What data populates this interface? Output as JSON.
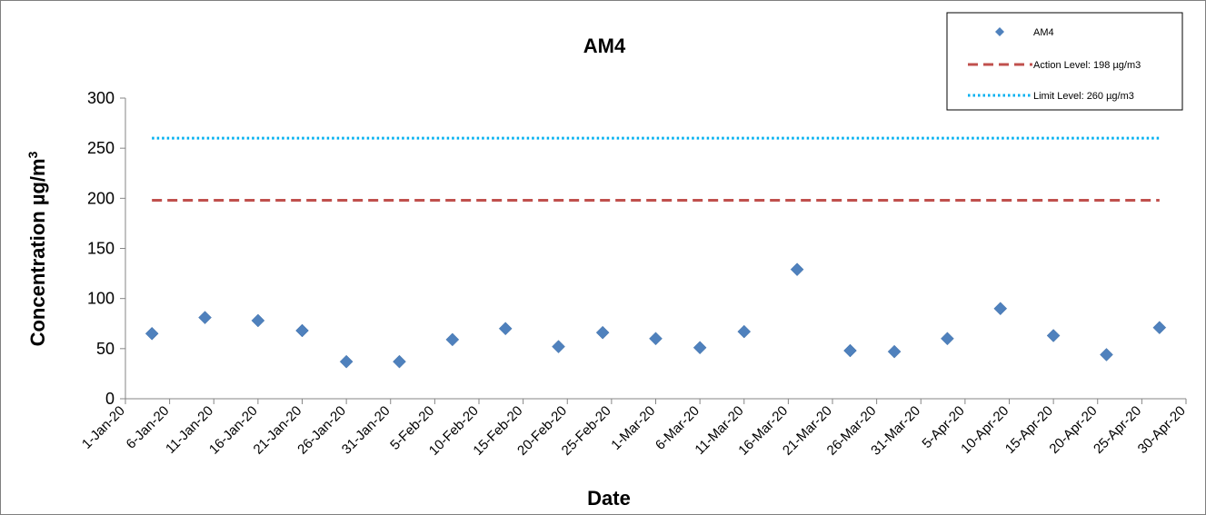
{
  "chart_data": {
    "type": "scatter",
    "title": "AM4",
    "xlabel": "Date",
    "ylabel": "Concentration µg/m³",
    "ylabel_main": "Concentration µg/m",
    "ylabel_sup": "3",
    "ylim": [
      0,
      300
    ],
    "y_ticks": [
      "0",
      "50",
      "100",
      "150",
      "200",
      "250",
      "300"
    ],
    "xlim": [
      "2020-01-01",
      "2020-04-30"
    ],
    "x_ticks": [
      "1-Jan-20",
      "6-Jan-20",
      "11-Jan-20",
      "16-Jan-20",
      "21-Jan-20",
      "26-Jan-20",
      "31-Jan-20",
      "5-Feb-20",
      "10-Feb-20",
      "15-Feb-20",
      "20-Feb-20",
      "25-Feb-20",
      "1-Mar-20",
      "6-Mar-20",
      "11-Mar-20",
      "16-Mar-20",
      "21-Mar-20",
      "26-Mar-20",
      "31-Mar-20",
      "5-Apr-20",
      "10-Apr-20",
      "15-Apr-20",
      "20-Apr-20",
      "25-Apr-20",
      "30-Apr-20"
    ],
    "x_tick_dates": [
      "2020-01-01",
      "2020-01-06",
      "2020-01-11",
      "2020-01-16",
      "2020-01-21",
      "2020-01-26",
      "2020-01-31",
      "2020-02-05",
      "2020-02-10",
      "2020-02-15",
      "2020-02-20",
      "2020-02-25",
      "2020-03-01",
      "2020-03-06",
      "2020-03-11",
      "2020-03-16",
      "2020-03-21",
      "2020-03-26",
      "2020-03-31",
      "2020-04-05",
      "2020-04-10",
      "2020-04-15",
      "2020-04-20",
      "2020-04-25",
      "2020-04-30"
    ],
    "series": [
      {
        "name": "AM4",
        "color": "#4f81bd",
        "marker": "diamond",
        "x": [
          "2020-01-04",
          "2020-01-10",
          "2020-01-16",
          "2020-01-21",
          "2020-01-26",
          "2020-02-01",
          "2020-02-07",
          "2020-02-13",
          "2020-02-19",
          "2020-02-24",
          "2020-03-01",
          "2020-03-06",
          "2020-03-11",
          "2020-03-17",
          "2020-03-23",
          "2020-03-28",
          "2020-04-03",
          "2020-04-09",
          "2020-04-15",
          "2020-04-21",
          "2020-04-27"
        ],
        "y": [
          65,
          81,
          78,
          68,
          37,
          37,
          59,
          70,
          52,
          66,
          60,
          51,
          67,
          129,
          48,
          47,
          60,
          90,
          63,
          44,
          71
        ]
      }
    ],
    "reference_lines": [
      {
        "name": "Action Level: 198 µg/m3",
        "value": 198,
        "color": "#c0504d",
        "style": "dashed"
      },
      {
        "name": "Limit Level: 260 µg/m3",
        "value": 260,
        "color": "#00b0f0",
        "style": "dotted"
      }
    ],
    "grid": false,
    "legend_position": "top-right"
  }
}
